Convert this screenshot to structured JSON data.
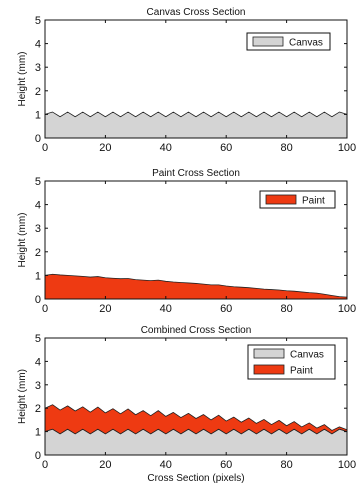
{
  "chart_data": [
    {
      "type": "area",
      "title": "Canvas Cross Section",
      "xlabel": "",
      "ylabel": "Height (mm)",
      "xlim": [
        0,
        100
      ],
      "ylim": [
        0,
        5
      ],
      "xticks": [
        0,
        20,
        40,
        60,
        80,
        100
      ],
      "yticks": [
        0,
        1,
        2,
        3,
        4,
        5
      ],
      "legend": "top-right",
      "series": [
        {
          "name": "Canvas",
          "color": "#d4d4d4",
          "x": [
            0,
            2.5,
            5,
            7.5,
            10,
            12.5,
            15,
            17.5,
            20,
            22.5,
            25,
            27.5,
            30,
            32.5,
            35,
            37.5,
            40,
            42.5,
            45,
            47.5,
            50,
            52.5,
            55,
            57.5,
            60,
            62.5,
            65,
            67.5,
            70,
            72.5,
            75,
            77.5,
            80,
            82.5,
            85,
            87.5,
            90,
            92.5,
            95,
            97.5,
            100
          ],
          "values": [
            1.0,
            1.1,
            0.9,
            1.1,
            0.9,
            1.1,
            0.9,
            1.1,
            0.9,
            1.1,
            0.9,
            1.1,
            0.9,
            1.1,
            0.9,
            1.1,
            0.9,
            1.1,
            0.9,
            1.1,
            0.9,
            1.1,
            0.9,
            1.1,
            0.9,
            1.1,
            0.9,
            1.1,
            0.9,
            1.1,
            0.9,
            1.1,
            0.9,
            1.1,
            0.9,
            1.1,
            0.9,
            1.1,
            0.9,
            1.1,
            1.0
          ]
        }
      ]
    },
    {
      "type": "area",
      "title": "Paint Cross Section",
      "xlabel": "",
      "ylabel": "Height (mm)",
      "xlim": [
        0,
        100
      ],
      "ylim": [
        0,
        5
      ],
      "xticks": [
        0,
        20,
        40,
        60,
        80,
        100
      ],
      "yticks": [
        0,
        1,
        2,
        3,
        4,
        5
      ],
      "legend": "top-right",
      "series": [
        {
          "name": "Paint",
          "color": "#ee3a12",
          "x": [
            0,
            2.5,
            5,
            7.5,
            10,
            12.5,
            15,
            17.5,
            20,
            22.5,
            25,
            27.5,
            30,
            32.5,
            35,
            37.5,
            40,
            42.5,
            45,
            47.5,
            50,
            52.5,
            55,
            57.5,
            60,
            62.5,
            65,
            67.5,
            70,
            72.5,
            75,
            77.5,
            80,
            82.5,
            85,
            87.5,
            90,
            92.5,
            95,
            97.5,
            100
          ],
          "values": [
            1.0,
            1.05,
            1.02,
            1.0,
            0.98,
            0.96,
            0.93,
            0.95,
            0.9,
            0.88,
            0.86,
            0.87,
            0.82,
            0.8,
            0.78,
            0.8,
            0.75,
            0.72,
            0.7,
            0.68,
            0.66,
            0.63,
            0.6,
            0.6,
            0.55,
            0.52,
            0.5,
            0.48,
            0.45,
            0.42,
            0.4,
            0.38,
            0.35,
            0.33,
            0.3,
            0.27,
            0.25,
            0.2,
            0.15,
            0.1,
            0.08
          ]
        }
      ]
    },
    {
      "type": "area",
      "title": "Combined Cross Section",
      "xlabel": "Cross Section (pixels)",
      "ylabel": "Height (mm)",
      "xlim": [
        0,
        100
      ],
      "ylim": [
        0,
        5
      ],
      "xticks": [
        0,
        20,
        40,
        60,
        80,
        100
      ],
      "yticks": [
        0,
        1,
        2,
        3,
        4,
        5
      ],
      "legend": "top-right",
      "series": [
        {
          "name": "Canvas",
          "color": "#d4d4d4",
          "x": [
            0,
            2.5,
            5,
            7.5,
            10,
            12.5,
            15,
            17.5,
            20,
            22.5,
            25,
            27.5,
            30,
            32.5,
            35,
            37.5,
            40,
            42.5,
            45,
            47.5,
            50,
            52.5,
            55,
            57.5,
            60,
            62.5,
            65,
            67.5,
            70,
            72.5,
            75,
            77.5,
            80,
            82.5,
            85,
            87.5,
            90,
            92.5,
            95,
            97.5,
            100
          ],
          "values": [
            1.0,
            1.1,
            0.9,
            1.1,
            0.9,
            1.1,
            0.9,
            1.1,
            0.9,
            1.1,
            0.9,
            1.1,
            0.9,
            1.1,
            0.9,
            1.1,
            0.9,
            1.1,
            0.9,
            1.1,
            0.9,
            1.1,
            0.9,
            1.1,
            0.9,
            1.1,
            0.9,
            1.1,
            0.9,
            1.1,
            0.9,
            1.1,
            0.9,
            1.1,
            0.9,
            1.1,
            0.9,
            1.1,
            0.9,
            1.1,
            1.0
          ]
        },
        {
          "name": "Paint",
          "color": "#ee3a12",
          "x": [
            0,
            2.5,
            5,
            7.5,
            10,
            12.5,
            15,
            17.5,
            20,
            22.5,
            25,
            27.5,
            30,
            32.5,
            35,
            37.5,
            40,
            42.5,
            45,
            47.5,
            50,
            52.5,
            55,
            57.5,
            60,
            62.5,
            65,
            67.5,
            70,
            72.5,
            75,
            77.5,
            80,
            82.5,
            85,
            87.5,
            90,
            92.5,
            95,
            97.5,
            100
          ],
          "values": [
            2.0,
            2.15,
            1.92,
            2.1,
            1.88,
            2.06,
            1.83,
            2.05,
            1.8,
            1.98,
            1.76,
            1.97,
            1.72,
            1.9,
            1.68,
            1.9,
            1.65,
            1.82,
            1.6,
            1.78,
            1.56,
            1.73,
            1.5,
            1.7,
            1.45,
            1.62,
            1.4,
            1.58,
            1.35,
            1.52,
            1.3,
            1.48,
            1.25,
            1.43,
            1.2,
            1.37,
            1.15,
            1.3,
            1.05,
            1.2,
            1.08
          ]
        }
      ]
    }
  ]
}
